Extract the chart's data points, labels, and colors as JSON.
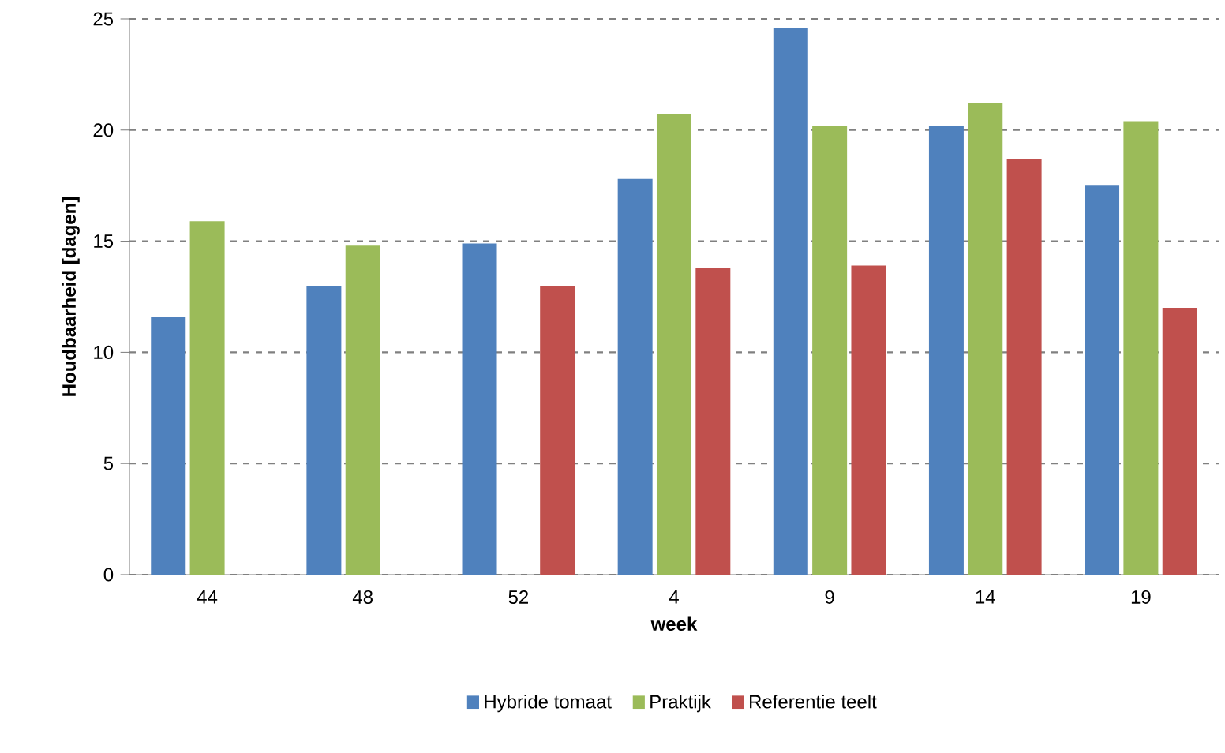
{
  "chart_data": {
    "type": "bar",
    "xlabel": "week",
    "ylabel": "Houdbaarheid [dagen]",
    "categories": [
      "44",
      "48",
      "52",
      "4",
      "9",
      "14",
      "19"
    ],
    "series": [
      {
        "name": "Hybride tomaat",
        "color": "#4f81bd",
        "values": [
          11.6,
          13.0,
          14.9,
          17.8,
          24.6,
          20.2,
          17.5
        ]
      },
      {
        "name": "Praktijk",
        "color": "#9bbb59",
        "values": [
          15.9,
          14.8,
          null,
          20.7,
          20.2,
          21.2,
          20.4
        ]
      },
      {
        "name": "Referentie teelt",
        "color": "#c0504d",
        "values": [
          null,
          null,
          13.0,
          13.8,
          13.9,
          18.7,
          12.0
        ]
      }
    ],
    "ylim": [
      0,
      25
    ],
    "yticks": [
      0,
      5,
      10,
      15,
      20,
      25
    ],
    "grid": "y",
    "legend": "bottom"
  }
}
